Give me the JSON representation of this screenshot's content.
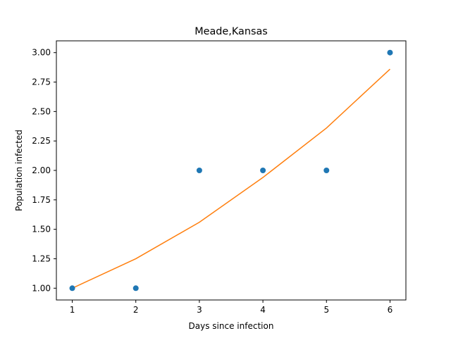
{
  "chart_data": {
    "type": "scatter",
    "title": "Meade,Kansas",
    "xlabel": "Days since infection",
    "ylabel": "Population infected",
    "xlim": [
      0.75,
      6.25
    ],
    "ylim": [
      0.9,
      3.1
    ],
    "grid": false,
    "x_ticks": [
      1,
      2,
      3,
      4,
      5,
      6
    ],
    "x_tick_labels": [
      "1",
      "2",
      "3",
      "4",
      "5",
      "6"
    ],
    "y_ticks": [
      1.0,
      1.25,
      1.5,
      1.75,
      2.0,
      2.25,
      2.5,
      2.75,
      3.0
    ],
    "y_tick_labels": [
      "1.00",
      "1.25",
      "1.50",
      "1.75",
      "2.00",
      "2.25",
      "2.50",
      "2.75",
      "3.00"
    ],
    "series": [
      {
        "kind": "scatter",
        "color": "#1f77b4",
        "x": [
          1,
          2,
          3,
          4,
          5,
          6
        ],
        "y": [
          1,
          1,
          2,
          2,
          2,
          3
        ]
      },
      {
        "kind": "line",
        "color": "#ff7f0e",
        "x": [
          1,
          2,
          3,
          4,
          5,
          6
        ],
        "y": [
          1.0,
          1.25,
          1.56,
          1.94,
          2.36,
          2.86
        ]
      }
    ]
  }
}
